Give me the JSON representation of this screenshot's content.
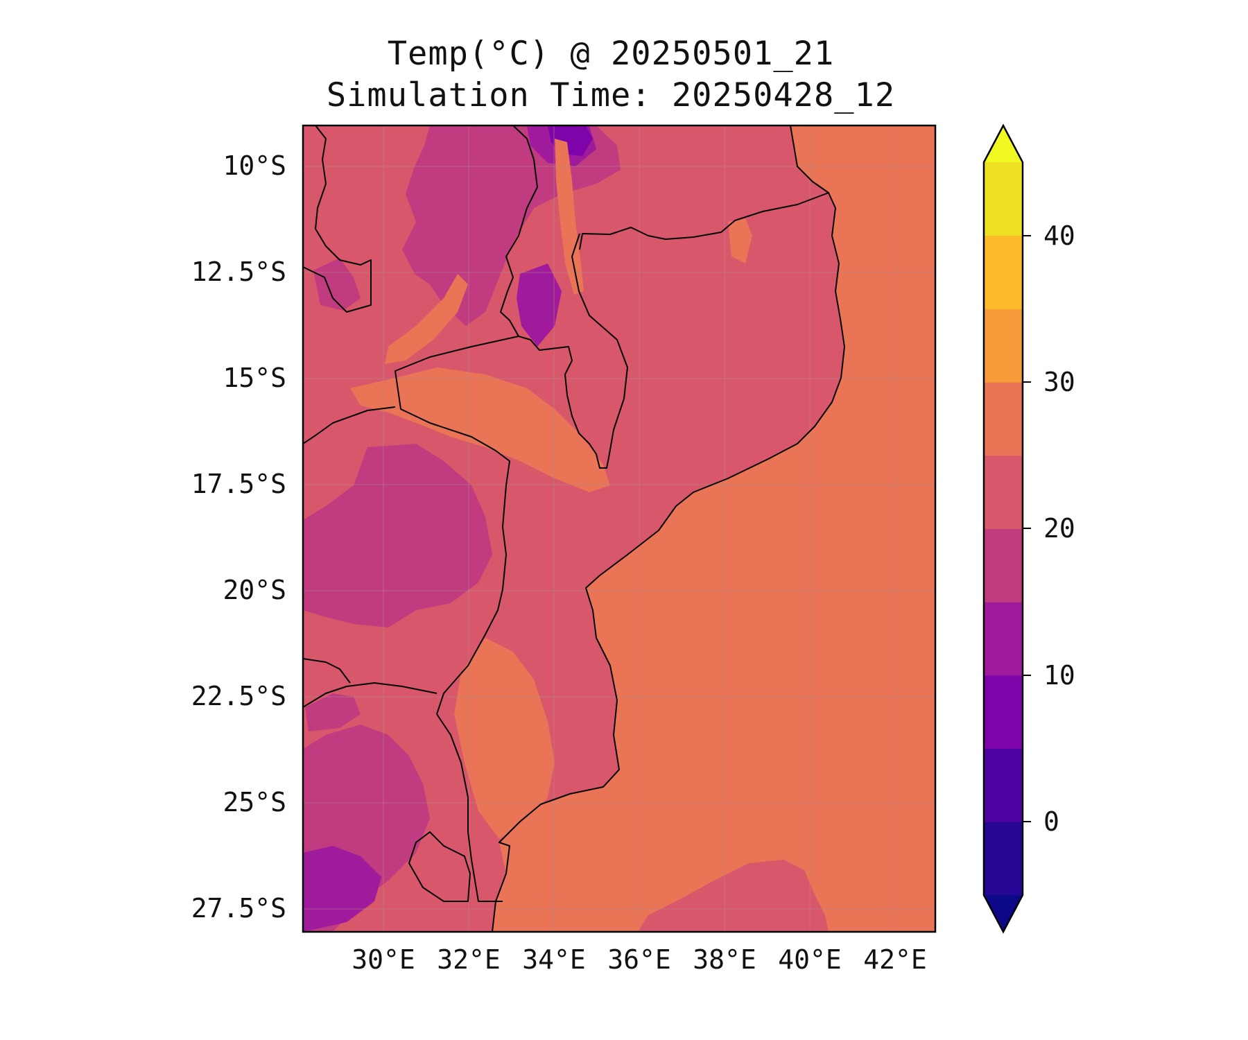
{
  "title": "Temp(°C) @ 20250501_21",
  "subtitle": "Simulation Time: 20250428_12",
  "map": {
    "region": "Mozambique and surroundings",
    "lon_range": [
      28.0,
      42.8
    ],
    "lat_range": [
      -28.3,
      -9.1
    ],
    "x_ticks": [
      "30°E",
      "32°E",
      "34°E",
      "36°E",
      "38°E",
      "40°E",
      "42°E"
    ],
    "y_ticks": [
      "10°S",
      "12.5°S",
      "15°S",
      "17.5°S",
      "20°S",
      "22.5°S",
      "25°S",
      "27.5°S"
    ],
    "gridlines": true
  },
  "colorbar": {
    "ticks": [
      "0",
      "10",
      "20",
      "30",
      "40"
    ],
    "levels": [
      -5,
      0,
      5,
      10,
      15,
      20,
      25,
      30,
      35,
      40,
      45
    ],
    "extend": "both",
    "colors": {
      "below": "#0d0887",
      "bands": [
        "#250695",
        "#4c02a1",
        "#7e03a8",
        "#a01a9c",
        "#c03b80",
        "#d8576b",
        "#e97456",
        "#f79a39",
        "#fdbb2c",
        "#f0e024"
      ],
      "above": "#f0f921"
    }
  },
  "fill_colors": {
    "ocean": "#e97456",
    "land": "#d8576b",
    "cool": "#c03b80",
    "cold": "#a01a9c",
    "coldest": "#7e03a8",
    "warm_patch": "#e97456",
    "border": "#000000"
  }
}
